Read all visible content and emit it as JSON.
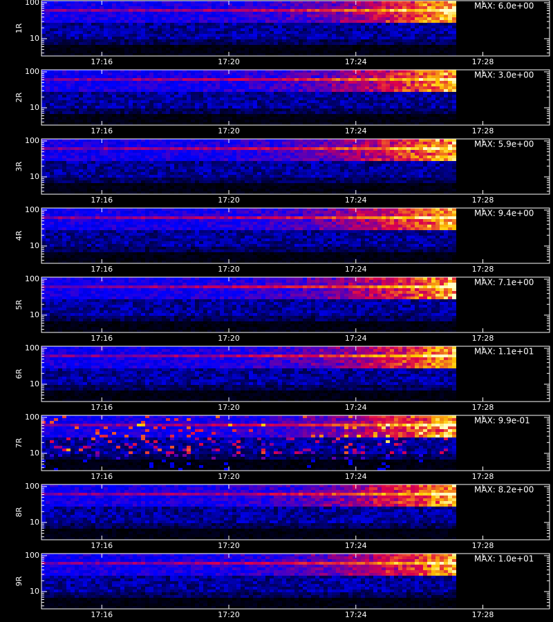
{
  "chart_data": [
    {
      "type": "heatmap",
      "y_label": "1R",
      "annotation": "MAX: 6.0e+00",
      "log_y": true,
      "ylim": [
        3.3,
        114
      ],
      "yticks": [
        10,
        100
      ],
      "yminor": [
        4,
        5,
        6,
        7,
        8,
        9,
        20,
        30,
        40,
        50,
        60,
        70,
        80,
        90
      ],
      "xlim": [
        1034.1,
        1050.1
      ],
      "xticks": [
        {
          "value": 1036,
          "label": "17:16"
        },
        {
          "value": 1040,
          "label": "17:20"
        },
        {
          "value": 1044,
          "label": "17:24"
        },
        {
          "value": 1048,
          "label": "17:28"
        }
      ]
    },
    {
      "type": "heatmap",
      "y_label": "2R",
      "annotation": "MAX: 3.0e+00",
      "log_y": true,
      "ylim": [
        3.3,
        114
      ],
      "yticks": [
        10,
        100
      ],
      "yminor": [
        4,
        5,
        6,
        7,
        8,
        9,
        20,
        30,
        40,
        50,
        60,
        70,
        80,
        90
      ],
      "xlim": [
        1034.1,
        1050.1
      ],
      "xticks": [
        {
          "value": 1036,
          "label": "17:16"
        },
        {
          "value": 1040,
          "label": "17:20"
        },
        {
          "value": 1044,
          "label": "17:24"
        },
        {
          "value": 1048,
          "label": "17:28"
        }
      ]
    },
    {
      "type": "heatmap",
      "y_label": "3R",
      "annotation": "MAX: 5.9e+00",
      "log_y": true,
      "ylim": [
        3.3,
        114
      ],
      "yticks": [
        10,
        100
      ],
      "yminor": [
        4,
        5,
        6,
        7,
        8,
        9,
        20,
        30,
        40,
        50,
        60,
        70,
        80,
        90
      ],
      "xlim": [
        1034.1,
        1050.1
      ],
      "xticks": [
        {
          "value": 1036,
          "label": "17:16"
        },
        {
          "value": 1040,
          "label": "17:20"
        },
        {
          "value": 1044,
          "label": "17:24"
        },
        {
          "value": 1048,
          "label": "17:28"
        }
      ]
    },
    {
      "type": "heatmap",
      "y_label": "4R",
      "annotation": "MAX: 9.4e+00",
      "log_y": true,
      "ylim": [
        3.3,
        114
      ],
      "yticks": [
        10,
        100
      ],
      "yminor": [
        4,
        5,
        6,
        7,
        8,
        9,
        20,
        30,
        40,
        50,
        60,
        70,
        80,
        90
      ],
      "xlim": [
        1034.1,
        1050.1
      ],
      "xticks": [
        {
          "value": 1036,
          "label": "17:16"
        },
        {
          "value": 1040,
          "label": "17:20"
        },
        {
          "value": 1044,
          "label": "17:24"
        },
        {
          "value": 1048,
          "label": "17:28"
        }
      ]
    },
    {
      "type": "heatmap",
      "y_label": "5R",
      "annotation": "MAX: 7.1e+00",
      "log_y": true,
      "ylim": [
        3.3,
        114
      ],
      "yticks": [
        10,
        100
      ],
      "yminor": [
        4,
        5,
        6,
        7,
        8,
        9,
        20,
        30,
        40,
        50,
        60,
        70,
        80,
        90
      ],
      "xlim": [
        1034.1,
        1050.1
      ],
      "xticks": [
        {
          "value": 1036,
          "label": "17:16"
        },
        {
          "value": 1040,
          "label": "17:20"
        },
        {
          "value": 1044,
          "label": "17:24"
        },
        {
          "value": 1048,
          "label": "17:28"
        }
      ]
    },
    {
      "type": "heatmap",
      "y_label": "6R",
      "annotation": "MAX: 1.1e+01",
      "log_y": true,
      "ylim": [
        3.3,
        114
      ],
      "yticks": [
        10,
        100
      ],
      "yminor": [
        4,
        5,
        6,
        7,
        8,
        9,
        20,
        30,
        40,
        50,
        60,
        70,
        80,
        90
      ],
      "xlim": [
        1034.1,
        1050.1
      ],
      "xticks": [
        {
          "value": 1036,
          "label": "17:16"
        },
        {
          "value": 1040,
          "label": "17:20"
        },
        {
          "value": 1044,
          "label": "17:24"
        },
        {
          "value": 1048,
          "label": "17:28"
        }
      ]
    },
    {
      "type": "heatmap",
      "y_label": "7R",
      "annotation": "MAX: 9.9e-01",
      "log_y": true,
      "ylim": [
        3.3,
        114
      ],
      "yticks": [
        10,
        100
      ],
      "yminor": [
        4,
        5,
        6,
        7,
        8,
        9,
        20,
        30,
        40,
        50,
        60,
        70,
        80,
        90
      ],
      "xlim": [
        1034.1,
        1050.1
      ],
      "xticks": [
        {
          "value": 1036,
          "label": "17:16"
        },
        {
          "value": 1040,
          "label": "17:20"
        },
        {
          "value": 1044,
          "label": "17:24"
        },
        {
          "value": 1048,
          "label": "17:28"
        }
      ]
    },
    {
      "type": "heatmap",
      "y_label": "8R",
      "annotation": "MAX: 8.2e+00",
      "log_y": true,
      "ylim": [
        3.3,
        114
      ],
      "yticks": [
        10,
        100
      ],
      "yminor": [
        4,
        5,
        6,
        7,
        8,
        9,
        20,
        30,
        40,
        50,
        60,
        70,
        80,
        90
      ],
      "xlim": [
        1034.1,
        1050.1
      ],
      "xticks": [
        {
          "value": 1036,
          "label": "17:16"
        },
        {
          "value": 1040,
          "label": "17:20"
        },
        {
          "value": 1044,
          "label": "17:24"
        },
        {
          "value": 1048,
          "label": "17:28"
        }
      ]
    },
    {
      "type": "heatmap",
      "y_label": "9R",
      "annotation": "MAX: 1.0e+01",
      "log_y": true,
      "ylim": [
        3.3,
        114
      ],
      "yticks": [
        10,
        100
      ],
      "yminor": [
        4,
        5,
        6,
        7,
        8,
        9,
        20,
        30,
        40,
        50,
        60,
        70,
        80,
        90
      ],
      "xlim": [
        1034.1,
        1050.1
      ],
      "xticks": [
        {
          "value": 1036,
          "label": "17:16"
        },
        {
          "value": 1040,
          "label": "17:20"
        },
        {
          "value": 1044,
          "label": "17:24"
        },
        {
          "value": 1048,
          "label": "17:28"
        }
      ]
    }
  ]
}
